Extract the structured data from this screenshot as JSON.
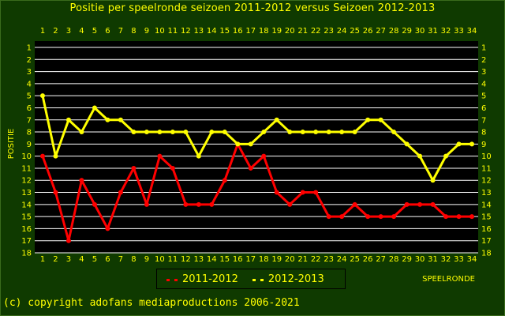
{
  "chart_data": {
    "type": "line",
    "title": "Positie per speelronde seizoen 2011-2012 versus Seizoen 2012-2013",
    "xlabel": "SPEELRONDE",
    "ylabel": "POSITIE",
    "x": [
      1,
      2,
      3,
      4,
      5,
      6,
      7,
      8,
      9,
      10,
      11,
      12,
      13,
      14,
      15,
      16,
      17,
      18,
      19,
      20,
      21,
      22,
      23,
      24,
      25,
      26,
      27,
      28,
      29,
      30,
      31,
      32,
      33,
      34
    ],
    "ylim": [
      18,
      1
    ],
    "y_ticks": [
      1,
      2,
      3,
      4,
      5,
      6,
      7,
      8,
      9,
      10,
      11,
      12,
      13,
      14,
      15,
      16,
      17,
      18
    ],
    "grid": true,
    "legend_position": "bottom-center",
    "series": [
      {
        "name": "2011-2012",
        "color": "#ff0000",
        "values": [
          10,
          13,
          17,
          12,
          14,
          16,
          13,
          11,
          14,
          10,
          11,
          14,
          14,
          14,
          12,
          9,
          11,
          10,
          13,
          14,
          13,
          13,
          15,
          15,
          14,
          15,
          15,
          15,
          14,
          14,
          14,
          15,
          15,
          15
        ]
      },
      {
        "name": "2012-2013",
        "color": "#ffff00",
        "values": [
          5,
          10,
          7,
          8,
          6,
          7,
          7,
          8,
          8,
          8,
          8,
          8,
          10,
          8,
          8,
          9,
          9,
          8,
          7,
          8,
          8,
          8,
          8,
          8,
          8,
          7,
          7,
          8,
          9,
          10,
          12,
          10,
          9,
          9
        ]
      }
    ]
  },
  "footer": {
    "copyright": "(c) copyright adofans mediaproductions 2006-2021"
  }
}
